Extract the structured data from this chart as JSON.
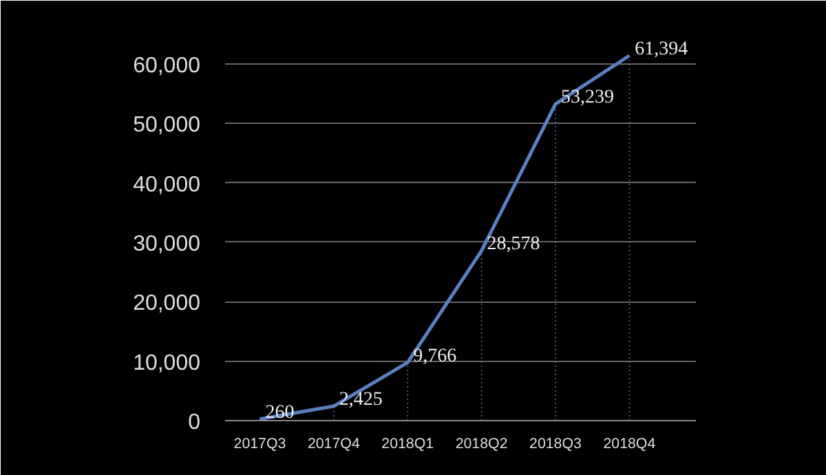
{
  "chart_data": {
    "type": "line",
    "categories": [
      "2017Q3",
      "2017Q4",
      "2018Q1",
      "2018Q2",
      "2018Q3",
      "2018Q4"
    ],
    "series": [
      {
        "color": "#5a80c0",
        "values": [
          260,
          2425,
          9766,
          28578,
          53239,
          61394
        ]
      }
    ],
    "ylim": [
      0,
      66000
    ],
    "yticks": [
      {
        "value": 0,
        "label": "0"
      },
      {
        "value": 10000,
        "label": "10,000"
      },
      {
        "value": 20000,
        "label": "20,000"
      },
      {
        "value": 30000,
        "label": "30,000"
      },
      {
        "value": 40000,
        "label": "40,000"
      },
      {
        "value": 50000,
        "label": "50,000"
      },
      {
        "value": 60000,
        "label": "60,000"
      }
    ],
    "value_labels": [
      "260",
      "2,425",
      "9,766",
      "28,578",
      "53,239",
      "61,394"
    ],
    "grid": true,
    "marker": "none",
    "line_style": "solid"
  }
}
